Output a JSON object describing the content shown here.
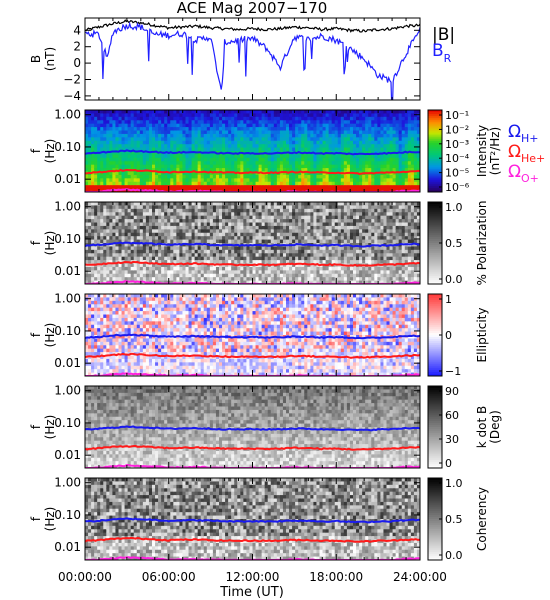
{
  "title": "ACE Mag 2007−170",
  "time_axis": {
    "label": "Time (UT)",
    "ticks": [
      "00:00:00",
      "06:00:00",
      "12:00:00",
      "18:00:00",
      "24:00:00"
    ],
    "range_hours": [
      0,
      24
    ]
  },
  "legend": {
    "b_total": "|B|",
    "b_r_main": "B",
    "b_r_sub": "R",
    "h_plus_main": "Ω",
    "h_plus_sub": "H+",
    "he_plus_main": "Ω",
    "he_plus_sub": "He+",
    "o_plus_main": "Ω",
    "o_plus_sub": "O+"
  },
  "colors": {
    "b_total": "#000000",
    "b_r": "#2020ff",
    "h_plus": "#1a1aee",
    "he_plus": "#ff1a1a",
    "o_plus": "#ff22dd"
  },
  "chart_data": [
    {
      "type": "line",
      "panel": "field",
      "ylabel_main": "B",
      "ylabel_unit": "(nT)",
      "ylim": [
        -4.5,
        5.5
      ],
      "yticks": [
        "4",
        "2",
        "0",
        "−2",
        "−4"
      ],
      "ytick_values": [
        4,
        2,
        0,
        -2,
        -4
      ],
      "series": [
        {
          "name": "|B|",
          "x": [
            0,
            1,
            2,
            3,
            4,
            5,
            6,
            7,
            8,
            9,
            10,
            11,
            12,
            13,
            14,
            15,
            16,
            17,
            18,
            19,
            20,
            21,
            22,
            23,
            24
          ],
          "values": [
            4.0,
            4.4,
            4.8,
            5.1,
            4.9,
            4.6,
            4.3,
            4.4,
            4.5,
            4.3,
            4.2,
            4.1,
            4.2,
            4.1,
            4.2,
            4.4,
            4.3,
            4.1,
            4.2,
            4.0,
            3.9,
            4.1,
            4.2,
            4.5,
            4.6
          ]
        },
        {
          "name": "B_R",
          "x": [
            0,
            1,
            1.6,
            2,
            3,
            4,
            5,
            6,
            7,
            8,
            9,
            9.8,
            10,
            11,
            12,
            13,
            14,
            15,
            16,
            17,
            18,
            19,
            20,
            21,
            22,
            23,
            24
          ],
          "values": [
            3.6,
            3.5,
            0.5,
            3.8,
            4.6,
            4.4,
            3.5,
            3.4,
            3.6,
            2.8,
            3.2,
            -3.9,
            2.5,
            2.8,
            3.0,
            1.8,
            -0.5,
            3.2,
            2.9,
            3.3,
            2.8,
            1.8,
            0.5,
            -1.5,
            -2.2,
            1.2,
            4.0
          ]
        }
      ]
    },
    {
      "type": "heatmap",
      "panel": "intensity",
      "ylabel_main": "f",
      "ylabel_unit": "(Hz)",
      "yscale": "log",
      "ylim": [
        0.004,
        1.4
      ],
      "yticks": [
        "1.00",
        "0.10",
        "0.01"
      ],
      "ytick_values": [
        1,
        0.1,
        0.01
      ],
      "colorbar": {
        "label": "Intensity",
        "unit": "(nT²/Hz)",
        "ticks": [
          "10⁻¹",
          "10⁻²",
          "10⁻³",
          "10⁻⁴",
          "10⁻⁵",
          "10⁻⁶"
        ],
        "range": [
          1e-06,
          0.3
        ],
        "scale": "rainbow"
      }
    },
    {
      "type": "heatmap",
      "panel": "polarization",
      "ylabel_main": "f",
      "ylabel_unit": "(Hz)",
      "yscale": "log",
      "ylim": [
        0.004,
        1.4
      ],
      "yticks": [
        "1.00",
        "0.10",
        "0.01"
      ],
      "ytick_values": [
        1,
        0.1,
        0.01
      ],
      "colorbar": {
        "label": "% Polarization",
        "unit": "",
        "ticks": [
          "1.0",
          "0.5",
          "0.0"
        ],
        "range": [
          0,
          1
        ],
        "scale": "gray"
      }
    },
    {
      "type": "heatmap",
      "panel": "ellipticity",
      "ylabel_main": "f",
      "ylabel_unit": "(Hz)",
      "yscale": "log",
      "ylim": [
        0.004,
        1.4
      ],
      "yticks": [
        "1.00",
        "0.10",
        "0.01"
      ],
      "ytick_values": [
        1,
        0.1,
        0.01
      ],
      "colorbar": {
        "label": "Ellipticity",
        "unit": "",
        "ticks": [
          "1",
          "0",
          "−1"
        ],
        "range": [
          -1,
          1
        ],
        "scale": "redblue"
      }
    },
    {
      "type": "heatmap",
      "panel": "kdotb",
      "ylabel_main": "f",
      "ylabel_unit": "(Hz)",
      "yscale": "log",
      "ylim": [
        0.004,
        1.4
      ],
      "yticks": [
        "1.00",
        "0.10",
        "0.01"
      ],
      "ytick_values": [
        1,
        0.1,
        0.01
      ],
      "colorbar": {
        "label": "k dot B",
        "unit": "(Deg)",
        "ticks": [
          "90",
          "60",
          "30",
          "0"
        ],
        "range": [
          0,
          90
        ],
        "scale": "gray"
      }
    },
    {
      "type": "heatmap",
      "panel": "coherency",
      "ylabel_main": "f",
      "ylabel_unit": "(Hz)",
      "yscale": "log",
      "ylim": [
        0.004,
        1.4
      ],
      "yticks": [
        "1.00",
        "0.10",
        "0.01"
      ],
      "ytick_values": [
        1,
        0.1,
        0.01
      ],
      "colorbar": {
        "label": "Coherency",
        "unit": "",
        "ticks": [
          "1.0",
          "0.5",
          "0.0"
        ],
        "range": [
          0,
          1
        ],
        "scale": "gray"
      }
    }
  ],
  "gyrofrequency_lines": {
    "x": [
      0,
      1,
      2,
      3,
      4,
      5,
      6,
      7,
      8,
      9,
      10,
      11,
      12,
      13,
      14,
      15,
      16,
      17,
      18,
      19,
      20,
      21,
      22,
      23,
      24
    ],
    "h_plus_hz": [
      0.062,
      0.066,
      0.072,
      0.076,
      0.074,
      0.07,
      0.066,
      0.068,
      0.069,
      0.066,
      0.064,
      0.063,
      0.064,
      0.063,
      0.064,
      0.067,
      0.066,
      0.063,
      0.064,
      0.061,
      0.06,
      0.063,
      0.064,
      0.069,
      0.07
    ],
    "he_plus_hz": [
      0.0155,
      0.0165,
      0.018,
      0.019,
      0.0185,
      0.0175,
      0.0165,
      0.017,
      0.0172,
      0.0165,
      0.016,
      0.0158,
      0.016,
      0.0158,
      0.016,
      0.0168,
      0.0165,
      0.0158,
      0.016,
      0.0152,
      0.015,
      0.0158,
      0.016,
      0.0172,
      0.0175
    ],
    "o_plus_hz": [
      0.0039,
      0.0041,
      0.0045,
      0.0048,
      0.0046,
      0.0044,
      0.0041,
      0.0042,
      0.0043,
      0.0041,
      0.004,
      0.0039,
      0.004,
      0.0039,
      0.004,
      0.0042,
      0.0041,
      0.0039,
      0.004,
      0.0038,
      0.0038,
      0.0039,
      0.004,
      0.0043,
      0.0044
    ]
  }
}
